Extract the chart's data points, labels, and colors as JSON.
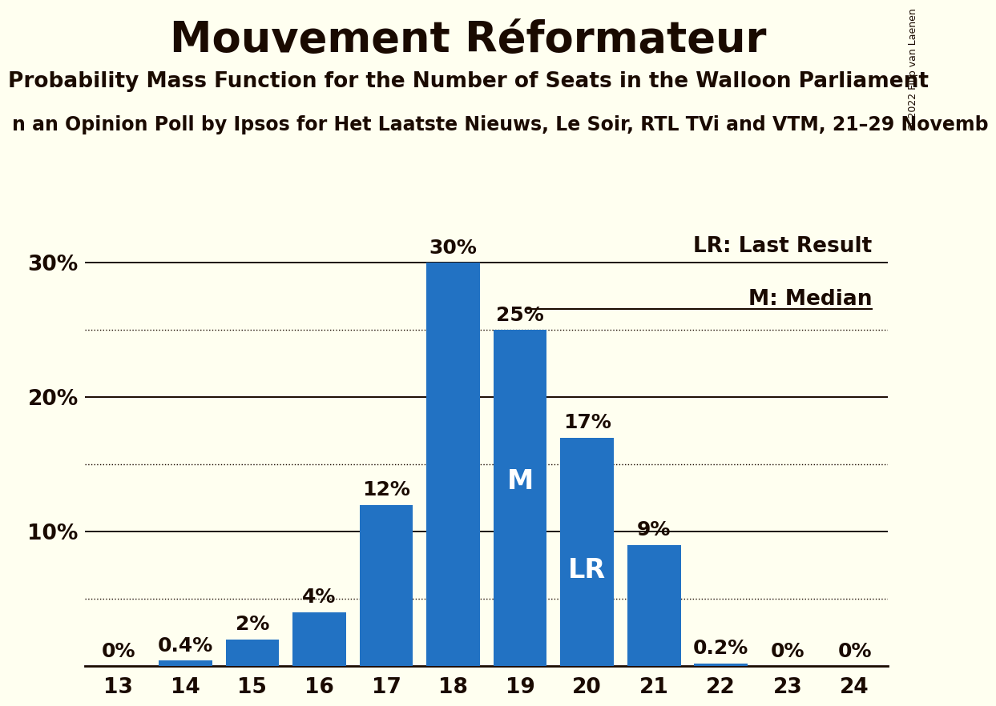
{
  "title": "Mouvement Réformateur",
  "subtitle": "Probability Mass Function for the Number of Seats in the Walloon Parliament",
  "subsubtitle": "n an Opinion Poll by Ipsos for Het Laatste Nieuws, Le Soir, RTL TVi and VTM, 21–29 Novemb",
  "copyright_text": "© 2022 Filip van Laenen",
  "seats": [
    13,
    14,
    15,
    16,
    17,
    18,
    19,
    20,
    21,
    22,
    23,
    24
  ],
  "probabilities": [
    0.0,
    0.4,
    2.0,
    4.0,
    12.0,
    30.0,
    25.0,
    17.0,
    9.0,
    0.2,
    0.0,
    0.0
  ],
  "bar_color": "#2272C3",
  "background_color": "#FFFFF0",
  "text_color": "#1a0a00",
  "lr_seat": 20,
  "median_seat": 19,
  "ylim": [
    0,
    33
  ],
  "solid_yticks": [
    10,
    20,
    30
  ],
  "dotted_yticks": [
    5,
    15,
    25
  ],
  "title_fontsize": 38,
  "subtitle_fontsize": 19,
  "subsubtitle_fontsize": 17,
  "tick_fontsize": 19,
  "bar_label_fontsize": 18,
  "legend_fontsize": 19,
  "inside_label_fontsize": 24
}
